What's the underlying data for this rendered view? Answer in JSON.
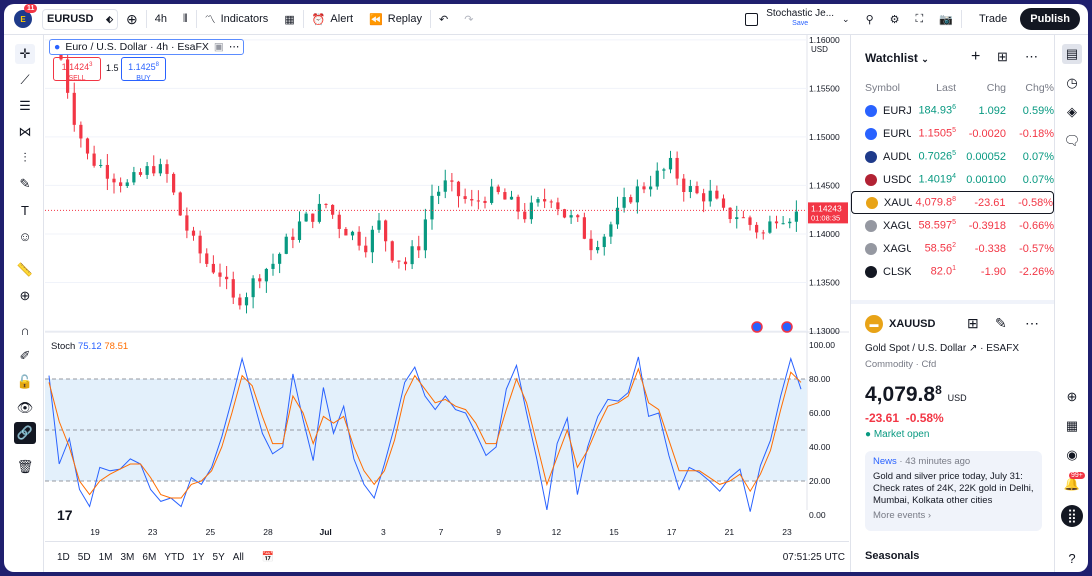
{
  "topbar": {
    "badge": "11",
    "symbol": "EURUSD",
    "interval": "4h",
    "indicators": "Indicators",
    "alert": "Alert",
    "replay": "Replay",
    "layout_name": "Stochastic Je...",
    "layout_sub": "Save",
    "trade": "Trade",
    "publish": "Publish"
  },
  "legend": {
    "title": "Euro / U.S. Dollar · 4h · EsaFX",
    "sell_price": "1.1424",
    "sell_sup": "3",
    "sell_label": "SELL",
    "spread": "1.5",
    "buy_price": "1.1425",
    "buy_sup": "8",
    "buy_label": "BUY",
    "currency": "USD"
  },
  "stoch": {
    "name": "Stoch",
    "k": "75.12",
    "d": "78.51"
  },
  "price_axis": [
    "1.16000",
    "1.15500",
    "1.15000",
    "1.14500",
    "1.14000",
    "1.13500",
    "1.13000"
  ],
  "current_price": {
    "value": "1.14243",
    "countdown": "01:08:35"
  },
  "stoch_axis": [
    "100.00",
    "80.00",
    "60.00",
    "40.00",
    "20.00",
    "0.00"
  ],
  "time_axis": [
    "19",
    "23",
    "25",
    "28",
    "Jul",
    "3",
    "7",
    "9",
    "12",
    "15",
    "17",
    "21",
    "23"
  ],
  "bottombar": {
    "ranges": [
      "1D",
      "5D",
      "1M",
      "3M",
      "6M",
      "YTD",
      "1Y",
      "5Y",
      "All"
    ],
    "clock": "07:51:25 UTC"
  },
  "watchlist": {
    "title": "Watchlist",
    "headers": {
      "symbol": "Symbol",
      "last": "Last",
      "chg": "Chg",
      "pct": "Chg%"
    },
    "rows": [
      {
        "symbol": "EURJ",
        "last": "184.93",
        "sup": "6",
        "chg": "1.092",
        "pct": "0.59%",
        "dir": "up",
        "icon": "#2962ff"
      },
      {
        "symbol": "EURU",
        "last": "1.1505",
        "sup": "5",
        "chg": "-0.0020",
        "pct": "-0.18%",
        "dir": "dn",
        "icon": "#2962ff"
      },
      {
        "symbol": "AUDU",
        "last": "0.7026",
        "sup": "5",
        "chg": "0.00052",
        "pct": "0.07%",
        "dir": "up",
        "icon": "#1e3a8a"
      },
      {
        "symbol": "USDC",
        "last": "1.4019",
        "sup": "4",
        "chg": "0.00100",
        "pct": "0.07%",
        "dir": "up",
        "icon": "#b22234"
      },
      {
        "symbol": "XAUU",
        "last": "4,079.8",
        "sup": "8",
        "chg": "-23.61",
        "pct": "-0.58%",
        "dir": "dn",
        "icon": "#e8a317"
      },
      {
        "symbol": "XAGU",
        "last": "58.597",
        "sup": "5",
        "chg": "-0.3918",
        "pct": "-0.66%",
        "dir": "dn",
        "icon": "#9598a1"
      },
      {
        "symbol": "XAGU",
        "last": "58.56",
        "sup": "2",
        "chg": "-0.338",
        "pct": "-0.57%",
        "dir": "dn",
        "icon": "#9598a1"
      },
      {
        "symbol": "CLSK",
        "last": "82.0",
        "sup": "1",
        "chg": "-1.90",
        "pct": "-2.26%",
        "dir": "dn",
        "icon": "#131722"
      }
    ]
  },
  "detail": {
    "symbol": "XAUUSD",
    "name": "Gold Spot / U.S. Dollar",
    "exchange": "ESAFX",
    "category": "Commodity · Cfd",
    "price": "4,079.8",
    "price_sup": "8",
    "currency": "USD",
    "change": "-23.61",
    "change_pct": "-0.58%",
    "status": "Market open",
    "news": {
      "tag": "News",
      "age": "· 43 minutes ago",
      "headline": "Gold and silver price today, July 31: Check rates of 24K, 22K gold in Delhi, Mumbai, Kolkata other cities",
      "more": "More events ›"
    },
    "seasonals": "Seasonals"
  },
  "rightbar": {
    "badge": "99+"
  },
  "chart_data": {
    "type": "candlestick",
    "title": "Euro / U.S. Dollar · 4h · EsaFX",
    "x_labels": [
      "19",
      "23",
      "25",
      "28",
      "Jul",
      "3",
      "7",
      "9",
      "12",
      "15",
      "17",
      "21",
      "23"
    ],
    "ylim": [
      1.13,
      1.1605
    ],
    "close_trail": [
      1.158,
      1.152,
      1.148,
      1.147,
      1.146,
      1.145,
      1.146,
      1.147,
      1.146,
      1.142,
      1.139,
      1.137,
      1.136,
      1.133,
      1.134,
      1.136,
      1.137,
      1.139,
      1.141,
      1.142,
      1.143,
      1.141,
      1.14,
      1.139,
      1.141,
      1.138,
      1.137,
      1.139,
      1.144,
      1.145,
      1.144,
      1.143,
      1.144,
      1.144,
      1.143,
      1.142,
      1.143,
      1.144,
      1.142,
      1.141,
      1.139,
      1.14,
      1.142,
      1.144,
      1.145,
      1.146,
      1.147,
      1.145,
      1.144,
      1.144,
      1.142,
      1.142,
      1.141,
      1.14,
      1.142,
      1.142
    ],
    "stoch_k": [
      82,
      30,
      45,
      15,
      5,
      28,
      26,
      27,
      33,
      30,
      15,
      8,
      10,
      5,
      22,
      18,
      28,
      46,
      68,
      92,
      70,
      48,
      36,
      40,
      83,
      56,
      32,
      75,
      48,
      64,
      33,
      18,
      10,
      30,
      52,
      78,
      87,
      70,
      62,
      70,
      62,
      60,
      48,
      35,
      40,
      74,
      88,
      60,
      33,
      3,
      42,
      57,
      12,
      40,
      58,
      68,
      67,
      72,
      93,
      58,
      60,
      35,
      15,
      28,
      25,
      20,
      14,
      22,
      27,
      2,
      29,
      44,
      70,
      92,
      74
    ],
    "stoch_d": [
      78,
      55,
      40,
      20,
      12,
      20,
      24,
      27,
      30,
      30,
      22,
      12,
      10,
      10,
      18,
      20,
      26,
      40,
      60,
      82,
      76,
      58,
      42,
      42,
      70,
      60,
      42,
      58,
      54,
      58,
      40,
      26,
      18,
      26,
      44,
      70,
      82,
      74,
      66,
      68,
      64,
      62,
      54,
      42,
      42,
      62,
      80,
      66,
      42,
      18,
      34,
      50,
      28,
      38,
      52,
      64,
      66,
      70,
      86,
      66,
      62,
      44,
      26,
      26,
      26,
      22,
      18,
      20,
      24,
      14,
      24,
      38,
      62,
      84,
      78
    ]
  }
}
